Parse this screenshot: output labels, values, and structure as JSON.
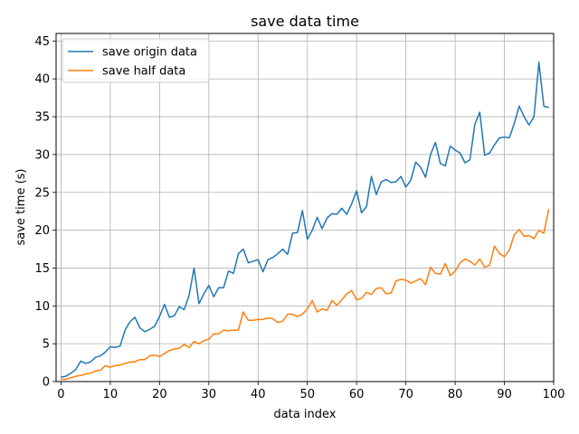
{
  "chart_data": {
    "type": "line",
    "title": "save data time",
    "xlabel": "data index",
    "ylabel": "save time (s)",
    "xlim": [
      -1,
      100
    ],
    "ylim": [
      0,
      46
    ],
    "xticks": [
      0,
      10,
      20,
      30,
      40,
      50,
      60,
      70,
      80,
      90,
      100
    ],
    "yticks": [
      0,
      5,
      10,
      15,
      20,
      25,
      30,
      35,
      40,
      45
    ],
    "grid": true,
    "legend_position": "upper-left",
    "series": [
      {
        "name": "save origin data",
        "color": "#1f77b4",
        "x": [
          0,
          1,
          2,
          3,
          4,
          5,
          6,
          7,
          8,
          9,
          10,
          11,
          12,
          13,
          14,
          15,
          16,
          17,
          18,
          19,
          20,
          21,
          22,
          23,
          24,
          25,
          26,
          27,
          28,
          29,
          30,
          31,
          32,
          33,
          34,
          35,
          36,
          37,
          38,
          39,
          40,
          41,
          42,
          43,
          44,
          45,
          46,
          47,
          48,
          49,
          50,
          51,
          52,
          53,
          54,
          55,
          56,
          57,
          58,
          59,
          60,
          61,
          62,
          63,
          64,
          65,
          66,
          67,
          68,
          69,
          70,
          71,
          72,
          73,
          74,
          75,
          76,
          77,
          78,
          79,
          80,
          81,
          82,
          83,
          84,
          85,
          86,
          87,
          88,
          89,
          90,
          91,
          92,
          93,
          94,
          95,
          96,
          97,
          98,
          99
        ],
        "values": [
          0.6,
          0.7,
          1.1,
          1.6,
          2.7,
          2.4,
          2.6,
          3.2,
          3.4,
          3.9,
          4.6,
          4.5,
          4.7,
          6.8,
          7.9,
          8.5,
          7.1,
          6.6,
          6.9,
          7.3,
          8.6,
          10.2,
          8.5,
          8.7,
          9.9,
          9.5,
          11.4,
          15.0,
          10.3,
          11.6,
          12.7,
          11.2,
          12.4,
          12.4,
          14.6,
          14.3,
          16.9,
          17.5,
          15.7,
          15.9,
          16.1,
          14.5,
          16.1,
          16.4,
          16.9,
          17.5,
          16.8,
          19.6,
          19.7,
          22.6,
          18.8,
          20.0,
          21.7,
          20.2,
          21.6,
          22.2,
          22.1,
          22.9,
          22.1,
          23.5,
          25.2,
          22.3,
          23.1,
          27.1,
          24.7,
          26.4,
          26.7,
          26.3,
          26.4,
          27.1,
          25.7,
          26.6,
          29.0,
          28.3,
          27.0,
          30.0,
          31.6,
          28.8,
          28.5,
          31.1,
          30.6,
          30.2,
          28.9,
          29.3,
          34.0,
          35.6,
          29.9,
          30.2,
          31.3,
          32.2,
          32.3,
          32.2,
          34.1,
          36.4,
          35.0,
          33.9,
          35.0,
          42.2,
          36.4,
          36.2
        ]
      },
      {
        "name": "save half data",
        "color": "#ff7f0e",
        "x": [
          0,
          1,
          2,
          3,
          4,
          5,
          6,
          7,
          8,
          9,
          10,
          11,
          12,
          13,
          14,
          15,
          16,
          17,
          18,
          19,
          20,
          21,
          22,
          23,
          24,
          25,
          26,
          27,
          28,
          29,
          30,
          31,
          32,
          33,
          34,
          35,
          36,
          37,
          38,
          39,
          40,
          41,
          42,
          43,
          44,
          45,
          46,
          47,
          48,
          49,
          50,
          51,
          52,
          53,
          54,
          55,
          56,
          57,
          58,
          59,
          60,
          61,
          62,
          63,
          64,
          65,
          66,
          67,
          68,
          69,
          70,
          71,
          72,
          73,
          74,
          75,
          76,
          77,
          78,
          79,
          80,
          81,
          82,
          83,
          84,
          85,
          86,
          87,
          88,
          89,
          90,
          91,
          92,
          93,
          94,
          95,
          96,
          97,
          98,
          99
        ],
        "values": [
          0.3,
          0.3,
          0.5,
          0.7,
          0.8,
          1.0,
          1.1,
          1.4,
          1.5,
          2.1,
          1.9,
          2.1,
          2.2,
          2.4,
          2.6,
          2.6,
          2.9,
          2.9,
          3.4,
          3.5,
          3.3,
          3.7,
          4.1,
          4.3,
          4.4,
          4.9,
          4.5,
          5.3,
          5.0,
          5.4,
          5.6,
          6.3,
          6.3,
          6.8,
          6.7,
          6.8,
          6.8,
          9.2,
          8.1,
          8.1,
          8.2,
          8.2,
          8.4,
          8.3,
          7.8,
          8.0,
          8.9,
          8.9,
          8.6,
          8.9,
          9.6,
          10.7,
          9.2,
          9.6,
          9.4,
          10.7,
          10.1,
          10.8,
          11.6,
          12.0,
          10.8,
          11.0,
          11.8,
          11.5,
          12.3,
          12.4,
          11.6,
          11.7,
          13.3,
          13.5,
          13.4,
          13.0,
          13.3,
          13.6,
          12.8,
          15.1,
          14.3,
          14.2,
          15.6,
          14.0,
          14.6,
          15.7,
          16.2,
          15.9,
          15.4,
          16.2,
          15.1,
          15.4,
          17.9,
          16.9,
          16.5,
          17.4,
          19.4,
          20.1,
          19.2,
          19.3,
          18.9,
          20.0,
          19.6,
          22.8
        ]
      }
    ]
  }
}
